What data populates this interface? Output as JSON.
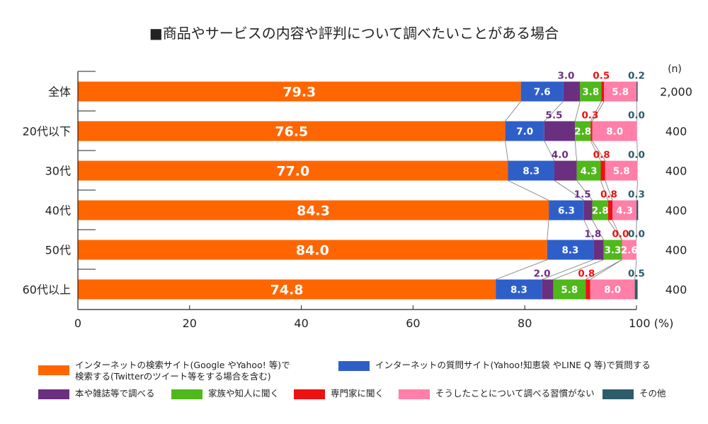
{
  "chart_data": {
    "type": "stacked-bar-horizontal",
    "title": "■商品やサービスの内容や評判について調べたいことがある場合",
    "n_label": "(n)",
    "x_tick_labels": [
      "0",
      "20",
      "40",
      "60",
      "80",
      "100 (%)"
    ],
    "xlim": [
      0,
      100
    ],
    "categories": [
      "全体",
      "20代以下",
      "30代",
      "40代",
      "50代",
      "60代以上"
    ],
    "n_values": [
      "2,000",
      "400",
      "400",
      "400",
      "400",
      "400"
    ],
    "series": [
      {
        "name": "インターネットの検索サイト(GoogleやYahoo!等)で検索する(Twitterのツイート等をする場合を含む)",
        "color": "#ff6600",
        "label_color": "#ffffff",
        "values": [
          79.3,
          76.5,
          77.0,
          84.3,
          84.0,
          74.8
        ],
        "labels": [
          "79.3",
          "76.5",
          "77.0",
          "84.3",
          "84.0",
          "74.8"
        ]
      },
      {
        "name": "インターネットの質問サイト(Yahoo!知恵袋 やLINE Q 等)で質問する",
        "color": "#2e5fc9",
        "label_color": "#ffffff",
        "values": [
          7.6,
          7.0,
          8.3,
          6.3,
          8.3,
          8.3
        ],
        "labels": [
          "7.6",
          "7.0",
          "8.3",
          "6.3",
          "8.3",
          "8.3"
        ]
      },
      {
        "name": "本や雑誌等で調べる",
        "color": "#6b2f7f",
        "label_color": "#6b2f7f",
        "values": [
          3.0,
          5.5,
          4.0,
          1.5,
          1.8,
          2.0
        ],
        "labels": [
          "3.0",
          "5.5",
          "4.0",
          "1.5",
          "1.8",
          "2.0"
        ]
      },
      {
        "name": "家族や知人に聞く",
        "color": "#4fb81a",
        "label_color": "#ffffff",
        "values": [
          3.8,
          2.8,
          4.3,
          2.8,
          3.3,
          5.8
        ],
        "labels": [
          "3.8",
          "2.8",
          "4.3",
          "2.8",
          "3.3",
          "5.8"
        ]
      },
      {
        "name": "専門家に聞く",
        "color": "#ee1111",
        "label_color": "#ee1111",
        "values": [
          0.5,
          0.3,
          0.8,
          0.8,
          0.0,
          0.8
        ],
        "labels": [
          "0.5",
          "0.3",
          "0.8",
          "0.8",
          "0.0",
          "0.8"
        ]
      },
      {
        "name": "そうしたことについて調べる習慣がない",
        "color": "#ff7fa8",
        "label_color": "#ffffff",
        "values": [
          5.8,
          8.0,
          5.8,
          4.3,
          2.6,
          8.0
        ],
        "labels": [
          "5.8",
          "8.0",
          "5.8",
          "4.3",
          "2.6",
          "8.0"
        ]
      },
      {
        "name": "その他",
        "color": "#2d5c6b",
        "label_color": "#2d5c6b",
        "values": [
          0.2,
          0.0,
          0.0,
          0.3,
          0.0,
          0.5
        ],
        "labels": [
          "0.2",
          "0.0",
          "0.0",
          "0.3",
          "0.0",
          "0.5"
        ]
      }
    ],
    "legend": {
      "rows": [
        [
          {
            "series": 0,
            "lines": [
              "インターネットの検索サイト(Google やYahoo! 等)で",
              "検索する(Twitterのツイート等をする場合を含む)"
            ]
          },
          {
            "series": 1,
            "lines": [
              "インターネットの質問サイト(Yahoo!知恵袋 やLINE Q 等)で質問する"
            ]
          }
        ],
        [
          {
            "series": 2,
            "lines": [
              "本や雑誌等で調べる"
            ]
          },
          {
            "series": 3,
            "lines": [
              "家族や知人に聞く"
            ]
          },
          {
            "series": 4,
            "lines": [
              "専門家に聞く"
            ]
          },
          {
            "series": 5,
            "lines": [
              "そうしたことについて調べる習慣がない"
            ]
          },
          {
            "series": 6,
            "lines": [
              "その他"
            ]
          }
        ]
      ]
    }
  }
}
